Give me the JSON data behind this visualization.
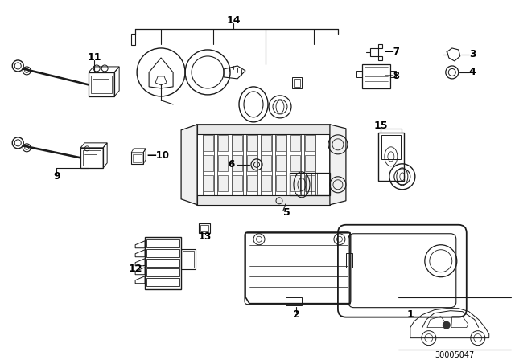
{
  "bg_color": "#ffffff",
  "line_color": "#1a1a1a",
  "label_color": "#000000",
  "diagram_code": "30005047",
  "figsize": [
    6.4,
    4.48
  ],
  "dpi": 100
}
